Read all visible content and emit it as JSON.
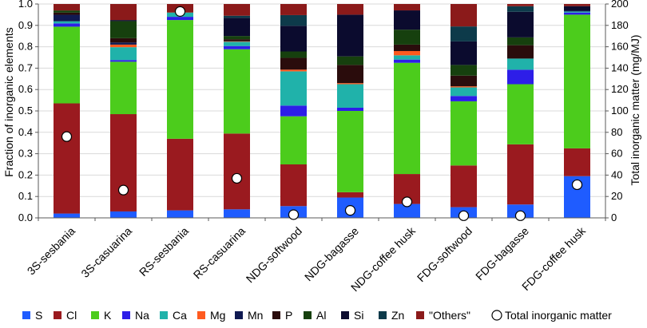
{
  "chart_data": {
    "type": "bar",
    "stacked": true,
    "categories": [
      "3S-sesbania",
      "3S-casuarina",
      "RS-sesbania",
      "RS-casuarina",
      "NDG-softwood",
      "NDG-bagasse",
      "NDG-coffee husk",
      "FDG-softwood",
      "FDG-bagasse",
      "FDG-coffee husk"
    ],
    "ylabel": "Fraction of inorganic elements",
    "y2label": "Total inorganic matter (mg/MJ)",
    "ylim": [
      0,
      1.0
    ],
    "y2lim": [
      0,
      200
    ],
    "yticks": [
      "0.0",
      "0.1",
      "0.2",
      "0.3",
      "0.4",
      "0.5",
      "0.6",
      "0.7",
      "0.8",
      "0.9",
      "1.0"
    ],
    "y2ticks": [
      "0",
      "20",
      "40",
      "60",
      "80",
      "100",
      "120",
      "140",
      "160",
      "180",
      "200"
    ],
    "series": [
      {
        "name": "S",
        "color": "#1f5cff",
        "values": [
          0.02,
          0.03,
          0.035,
          0.04,
          0.055,
          0.095,
          0.065,
          0.05,
          0.06,
          0.195
        ]
      },
      {
        "name": "Cl",
        "color": "#9a1a1f",
        "values": [
          0.51,
          0.455,
          0.335,
          0.355,
          0.195,
          0.025,
          0.14,
          0.195,
          0.27,
          0.13
        ]
      },
      {
        "name": "K",
        "color": "#4ccc1c",
        "values": [
          0.355,
          0.245,
          0.555,
          0.395,
          0.225,
          0.38,
          0.52,
          0.3,
          0.27,
          0.625
        ]
      },
      {
        "name": "Na",
        "color": "#2d1ee8",
        "values": [
          0.015,
          0.008,
          0.015,
          0.015,
          0.05,
          0.015,
          0.015,
          0.025,
          0.065,
          0.01
        ]
      },
      {
        "name": "Ca",
        "color": "#20b2aa",
        "values": [
          0.01,
          0.06,
          0.02,
          0.02,
          0.16,
          0.11,
          0.02,
          0.04,
          0.05,
          0.005
        ]
      },
      {
        "name": "Mg",
        "color": "#ff5a1f",
        "values": [
          0.0,
          0.012,
          0.0,
          0.002,
          0.008,
          0.005,
          0.02,
          0.005,
          0.0,
          0.0
        ]
      },
      {
        "name": "Mn",
        "color": "#101a52",
        "values": [
          0.03,
          0.01,
          0.0,
          0.0,
          0.0,
          0.0,
          0.0,
          0.0,
          0.0,
          0.005
        ]
      },
      {
        "name": "P",
        "color": "#2a0c0c",
        "values": [
          0.01,
          0.02,
          0.0,
          0.01,
          0.055,
          0.085,
          0.03,
          0.05,
          0.06,
          0.0
        ]
      },
      {
        "name": "Al",
        "color": "#16400e",
        "values": [
          0.01,
          0.08,
          0.0,
          0.015,
          0.03,
          0.04,
          0.07,
          0.05,
          0.035,
          0.0
        ]
      },
      {
        "name": "Si",
        "color": "#0b0b2e",
        "values": [
          0.0,
          0.005,
          0.0,
          0.085,
          0.12,
          0.195,
          0.09,
          0.11,
          0.115,
          0.02
        ]
      },
      {
        "name": "Zn",
        "color": "#0d3a4a",
        "values": [
          0.0,
          0.0,
          0.0,
          0.01,
          0.05,
          0.0,
          0.0,
          0.07,
          0.025,
          0.0
        ]
      },
      {
        "name": "\"Others\"",
        "color": "#8b1a1a",
        "values": [
          0.03,
          0.075,
          0.04,
          0.055,
          0.052,
          0.05,
          0.03,
          0.105,
          0.01,
          0.01
        ]
      }
    ],
    "scatter": {
      "name": "Total inorganic matter",
      "axis": "secondary",
      "values": [
        76,
        26,
        193,
        37,
        3,
        7,
        15,
        2,
        2,
        31
      ]
    },
    "legend": "bottom"
  }
}
